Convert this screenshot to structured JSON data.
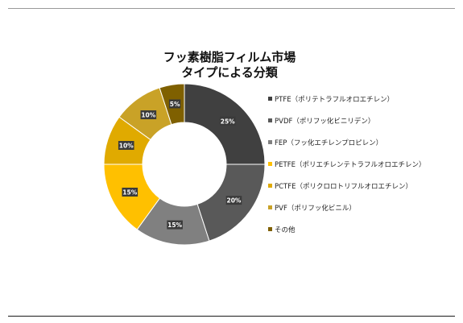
{
  "chart_data": {
    "type": "pie",
    "title_lines": [
      "フッ素樹脂フィルム市場",
      "タイプによる分類"
    ],
    "donut": true,
    "slices": [
      {
        "label": "PTFE（ポリテトラフルオロエチレン）",
        "value": 25,
        "data_label": "25%",
        "color": "#404040"
      },
      {
        "label": "PVDF（ポリフッ化ビニリデン）",
        "value": 20,
        "data_label": "20%",
        "color": "#595959"
      },
      {
        "label": "FEP（フッ化エチレンプロピレン）",
        "value": 15,
        "data_label": "15%",
        "color": "#808080"
      },
      {
        "label": "PETFE（ポリエチレンテトラフルオロエチレン）",
        "value": 15,
        "data_label": "15%",
        "color": "#FFC000"
      },
      {
        "label": "PCTFE（ポリクロロトリフルオロエチレン）",
        "value": 10,
        "data_label": "10%",
        "color": "#E0AA00"
      },
      {
        "label": "PVF（ポリフッ化ビニル）",
        "value": 10,
        "data_label": "10%",
        "color": "#C9A227"
      },
      {
        "label": "その他",
        "value": 5,
        "data_label": "5%",
        "color": "#7F6000"
      }
    ],
    "legend_position": "right"
  }
}
